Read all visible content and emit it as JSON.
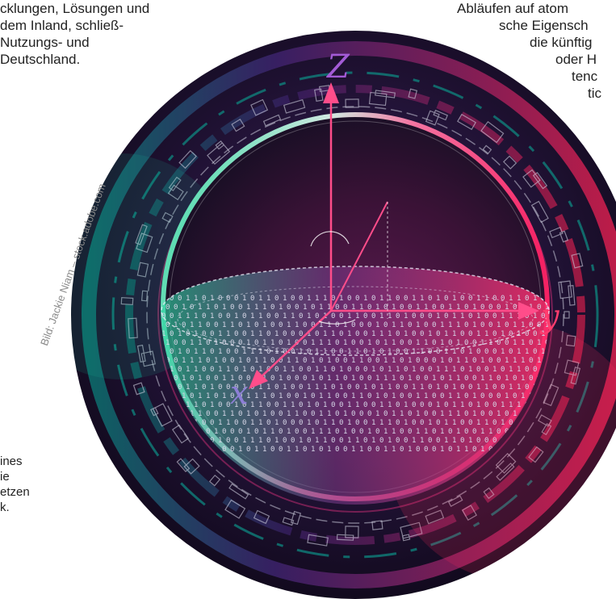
{
  "text_left_top": [
    "cklungen, Lösungen und",
    "dem Inland, schließ-",
    "Nutzungs- und",
    "Deutschland."
  ],
  "text_right_top": [
    "Abläufen auf atom",
    "sche Eigensch",
    "die künftig",
    "oder H",
    "tenc",
    "tic"
  ],
  "text_left_bottom": [
    "ines",
    "ie",
    "etzen",
    "k."
  ],
  "photo_credit": "Bild: Jackie Niam – stock.adobe.com",
  "axes": {
    "z": "Z",
    "y": "y",
    "x": "x"
  },
  "binary_pattern": "1001101000101101001110100101100110101001",
  "colors": {
    "ring_dark": "#1d1230",
    "teal": "#1fc7a0",
    "magenta": "#e0245e",
    "purple": "#6a2d9c",
    "axis_pink": "#ff4d8a",
    "x_label": "#8d7fd6"
  }
}
